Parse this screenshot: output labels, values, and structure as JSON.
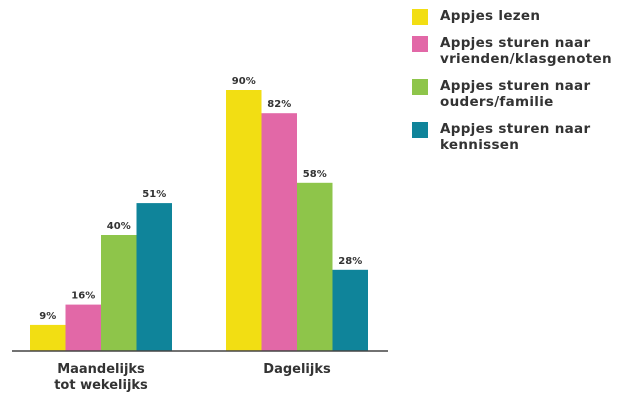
{
  "chart_data": {
    "type": "bar",
    "categories": [
      "Maandelijks\ntot wekelijks",
      "Dagelijks"
    ],
    "series": [
      {
        "name": "Appjes lezen",
        "color": "#F2DE13",
        "values": [
          9,
          90
        ]
      },
      {
        "name": "Appjes sturen naar vrienden/klasgenoten",
        "color": "#E268A7",
        "values": [
          16,
          82
        ]
      },
      {
        "name": "Appjes sturen naar ouders/familie",
        "color": "#8EC54A",
        "values": [
          40,
          58
        ]
      },
      {
        "name": "Appjes sturen naar kennissen",
        "color": "#0F849A",
        "values": [
          51,
          28
        ]
      }
    ],
    "value_suffix": "%",
    "ylim": [
      0,
      100
    ],
    "grid": false,
    "legend_position": "top-right"
  }
}
